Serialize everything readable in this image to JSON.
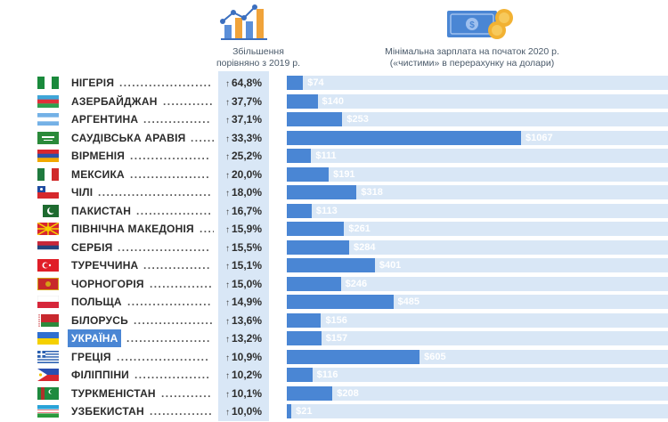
{
  "headers": {
    "increase": [
      "Збільшення",
      "порівняно з 2019 р."
    ],
    "wage": [
      "Мінімальна зарплата на початок 2020 р.",
      "(«чистими» в перерахунку на долари)"
    ]
  },
  "icons": {
    "chart_icon": "growth-chart-icon",
    "money_icon": "money-coins-icon"
  },
  "colors": {
    "bar": "#4a86d4",
    "strip": "#d9e7f6",
    "highlight": "#4a86d4"
  },
  "chart_data": {
    "type": "bar",
    "categories": [
      "НІГЕРІЯ",
      "АЗЕРБАЙДЖАН",
      "АРГЕНТИНА",
      "САУДІВСЬКА АРАВІЯ",
      "ВІРМЕНІЯ",
      "МЕКСИКА",
      "ЧІЛІ",
      "ПАКИСТАН",
      "ПІВНІЧНА МАКЕДОНІЯ",
      "СЕРБІЯ",
      "ТУРЕЧЧИНА",
      "ЧОРНОГОРІЯ",
      "ПОЛЬЩА",
      "БІЛОРУСЬ",
      "УКРАЇНА",
      "ГРЕЦІЯ",
      "ФІЛІППІНИ",
      "ТУРКМЕНІСТАН",
      "УЗБЕКИСТАН"
    ],
    "increase_labels": [
      "64,8%",
      "37,7%",
      "37,1%",
      "33,3%",
      "25,2%",
      "20,0%",
      "18,0%",
      "16,7%",
      "15,9%",
      "15,5%",
      "15,1%",
      "15,0%",
      "14,9%",
      "13,6%",
      "13,2%",
      "10,9%",
      "10,2%",
      "10,1%",
      "10,0%"
    ],
    "values": [
      74,
      140,
      253,
      1067,
      111,
      191,
      318,
      113,
      261,
      284,
      401,
      246,
      485,
      156,
      157,
      605,
      116,
      208,
      21
    ],
    "value_labels": [
      "$74",
      "$140",
      "$253",
      "$1067",
      "$111",
      "$191",
      "$318",
      "$113",
      "$261",
      "$284",
      "$401",
      "$246",
      "$485",
      "$156",
      "$157",
      "$605",
      "$116",
      "$208",
      "$21"
    ],
    "highlight": "УКРАЇНА",
    "xlim": [
      0,
      1067
    ]
  },
  "flags": [
    "nigeria",
    "azerbaijan",
    "argentina",
    "saudi-arabia",
    "armenia",
    "mexico",
    "chile",
    "pakistan",
    "north-macedonia",
    "serbia",
    "turkey",
    "montenegro",
    "poland",
    "belarus",
    "ukraine",
    "greece",
    "philippines",
    "turkmenistan",
    "uzbekistan"
  ]
}
